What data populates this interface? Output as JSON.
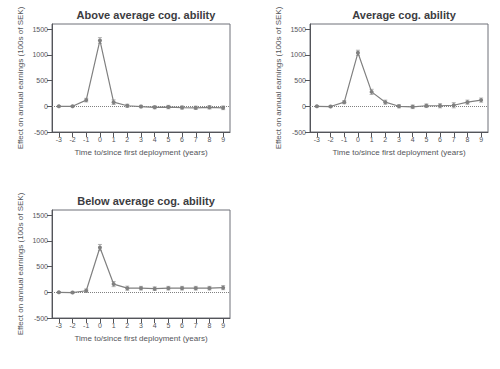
{
  "chart_data": [
    {
      "type": "line",
      "title": "Above average cog. ability",
      "xlabel": "Time to/since first deployment (years)",
      "ylabel": "Effect on annual earnings (100s of SEK)",
      "x": [
        -3,
        -2,
        -1,
        0,
        1,
        2,
        3,
        4,
        5,
        6,
        7,
        8,
        9
      ],
      "values": [
        0,
        0,
        120,
        1280,
        80,
        10,
        -5,
        -20,
        -15,
        -25,
        -30,
        -20,
        -30
      ],
      "ci_lo": [
        -15,
        -10,
        85,
        1225,
        35,
        -20,
        -28,
        -48,
        -48,
        -55,
        -62,
        -52,
        -65
      ],
      "ci_hi": [
        15,
        10,
        155,
        1335,
        125,
        40,
        18,
        8,
        18,
        5,
        2,
        12,
        5
      ],
      "hline": 0,
      "color": "#808080",
      "xlim": [
        -3.5,
        9.5
      ],
      "xticks": [
        -3,
        -2,
        -1,
        0,
        1,
        2,
        3,
        4,
        5,
        6,
        7,
        8,
        9
      ],
      "ylim": [
        -500,
        1600
      ],
      "yticks": [
        -500,
        0,
        500,
        1000,
        1500
      ],
      "grid": false
    },
    {
      "type": "line",
      "title": "Average cog. ability",
      "xlabel": "Time to/since first deployment (years)",
      "ylabel": "Effect on annual earnings (100s of SEK)",
      "x": [
        -3,
        -2,
        -1,
        0,
        1,
        2,
        3,
        4,
        5,
        6,
        7,
        8,
        9
      ],
      "values": [
        0,
        -5,
        80,
        1040,
        280,
        80,
        0,
        -10,
        10,
        10,
        20,
        80,
        120
      ],
      "ci_lo": [
        -15,
        -20,
        50,
        990,
        230,
        40,
        -30,
        -45,
        -25,
        -30,
        -30,
        40,
        80
      ],
      "ci_hi": [
        15,
        10,
        110,
        1090,
        330,
        120,
        30,
        25,
        45,
        50,
        70,
        120,
        160
      ],
      "hline": 0,
      "color": "#808080",
      "xlim": [
        -3.5,
        9.5
      ],
      "xticks": [
        -3,
        -2,
        -1,
        0,
        1,
        2,
        3,
        4,
        5,
        6,
        7,
        8,
        9
      ],
      "ylim": [
        -500,
        1600
      ],
      "yticks": [
        -500,
        0,
        500,
        1000,
        1500
      ],
      "grid": false
    },
    {
      "type": "line",
      "title": "Below average cog. ability",
      "xlabel": "Time to/since first deployment (years)",
      "ylabel": "Effect on annual earnings (100s of SEK)",
      "x": [
        -3,
        -2,
        -1,
        0,
        1,
        2,
        3,
        4,
        5,
        6,
        7,
        8,
        9
      ],
      "values": [
        0,
        -5,
        30,
        870,
        160,
        80,
        80,
        70,
        80,
        80,
        80,
        80,
        90
      ],
      "ci_lo": [
        -15,
        -20,
        0,
        810,
        110,
        40,
        45,
        35,
        45,
        45,
        45,
        45,
        50
      ],
      "ci_hi": [
        15,
        10,
        65,
        930,
        210,
        120,
        115,
        105,
        115,
        115,
        115,
        115,
        130
      ],
      "hline": 0,
      "color": "#808080",
      "xlim": [
        -3.5,
        9.5
      ],
      "xticks": [
        -3,
        -2,
        -1,
        0,
        1,
        2,
        3,
        4,
        5,
        6,
        7,
        8,
        9
      ],
      "ylim": [
        -500,
        1600
      ],
      "yticks": [
        -500,
        0,
        500,
        1000,
        1500
      ],
      "grid": false
    }
  ]
}
